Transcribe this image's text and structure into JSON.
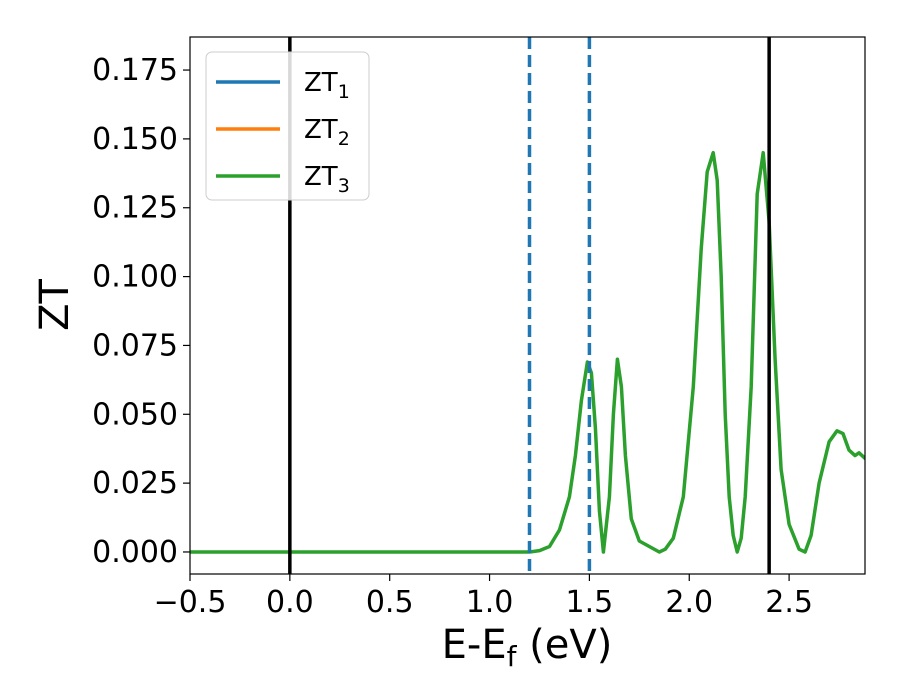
{
  "chart_data": {
    "type": "line",
    "xlabel": "E-E",
    "xlabel_sub": "f",
    "xlabel_unit": " (eV)",
    "ylabel": "ZT",
    "xlim": [
      -0.5,
      2.88
    ],
    "ylim": [
      -0.008,
      0.187
    ],
    "xticks": [
      -0.5,
      0.0,
      0.5,
      1.0,
      1.5,
      2.0,
      2.5
    ],
    "xtick_labels": [
      "−0.5",
      "0.0",
      "0.5",
      "1.0",
      "1.5",
      "2.0",
      "2.5"
    ],
    "yticks": [
      0.0,
      0.025,
      0.05,
      0.075,
      0.1,
      0.125,
      0.15,
      0.175
    ],
    "ytick_labels": [
      "0.000",
      "0.025",
      "0.050",
      "0.075",
      "0.100",
      "0.125",
      "0.150",
      "0.175"
    ],
    "grid": false,
    "legend_position": "top-left",
    "vlines": [
      {
        "x": 0.0,
        "style": "solid",
        "color": "#000000"
      },
      {
        "x": 2.4,
        "style": "solid",
        "color": "#000000"
      },
      {
        "x": 1.2,
        "style": "dashed",
        "color": "#1f77b4"
      },
      {
        "x": 1.5,
        "style": "dashed",
        "color": "#1f77b4"
      }
    ],
    "series": [
      {
        "name": "ZT",
        "sub": "1",
        "color": "#1f77b4"
      },
      {
        "name": "ZT",
        "sub": "2",
        "color": "#ff7f0e"
      },
      {
        "name": "ZT",
        "sub": "3",
        "color": "#2ca02c",
        "x": [
          -0.5,
          0.0,
          0.5,
          1.0,
          1.2,
          1.25,
          1.3,
          1.35,
          1.4,
          1.43,
          1.46,
          1.49,
          1.51,
          1.53,
          1.55,
          1.57,
          1.6,
          1.62,
          1.64,
          1.66,
          1.68,
          1.71,
          1.75,
          1.8,
          1.85,
          1.88,
          1.92,
          1.97,
          2.02,
          2.06,
          2.09,
          2.12,
          2.14,
          2.16,
          2.18,
          2.2,
          2.22,
          2.24,
          2.26,
          2.28,
          2.31,
          2.34,
          2.37,
          2.4,
          2.43,
          2.46,
          2.5,
          2.55,
          2.58,
          2.61,
          2.65,
          2.7,
          2.74,
          2.77,
          2.8,
          2.83,
          2.85,
          2.88
        ],
        "y": [
          0.0,
          0.0,
          0.0,
          0.0,
          0.0,
          0.0005,
          0.002,
          0.008,
          0.02,
          0.035,
          0.055,
          0.069,
          0.065,
          0.045,
          0.015,
          0.0,
          0.02,
          0.05,
          0.07,
          0.06,
          0.035,
          0.012,
          0.004,
          0.002,
          0.0,
          0.001,
          0.005,
          0.02,
          0.06,
          0.11,
          0.138,
          0.145,
          0.135,
          0.1,
          0.05,
          0.02,
          0.006,
          0.0,
          0.005,
          0.02,
          0.06,
          0.13,
          0.145,
          0.12,
          0.07,
          0.03,
          0.01,
          0.001,
          0.0,
          0.006,
          0.025,
          0.04,
          0.044,
          0.043,
          0.037,
          0.035,
          0.036,
          0.034
        ]
      }
    ]
  }
}
